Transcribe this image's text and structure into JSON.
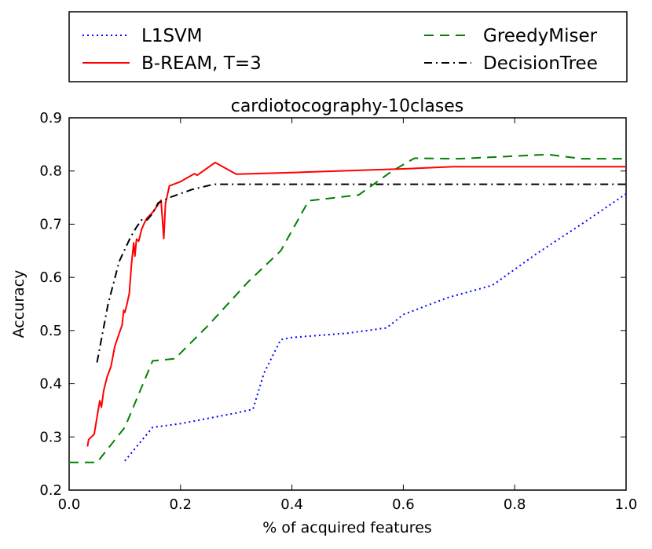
{
  "chart_data": {
    "type": "line",
    "title": "cardiotocography-10clases",
    "xlabel": "% of acquired features",
    "ylabel": "Accuracy",
    "xlim": [
      0.0,
      1.0
    ],
    "ylim": [
      0.2,
      0.9
    ],
    "xticks": [
      "0.0",
      "0.2",
      "0.4",
      "0.6",
      "0.8",
      "1.0"
    ],
    "yticks": [
      "0.2",
      "0.3",
      "0.4",
      "0.5",
      "0.6",
      "0.7",
      "0.8",
      "0.9"
    ],
    "legend_position": "top, above plot",
    "series": [
      {
        "name": "L1SVM",
        "color": "#0000ff",
        "style": "dotted",
        "x": [
          0.1,
          0.15,
          0.2,
          0.3,
          0.33,
          0.35,
          0.38,
          0.4,
          0.5,
          0.57,
          0.6,
          0.68,
          0.76,
          0.84,
          0.92,
          1.0
        ],
        "y": [
          0.255,
          0.318,
          0.325,
          0.345,
          0.352,
          0.42,
          0.483,
          0.487,
          0.495,
          0.505,
          0.53,
          0.562,
          0.585,
          0.645,
          0.7,
          0.757
        ]
      },
      {
        "name": "GreedyMiser",
        "color": "#008000",
        "style": "dashed",
        "x": [
          0.0,
          0.05,
          0.1,
          0.15,
          0.19,
          0.25,
          0.32,
          0.38,
          0.43,
          0.52,
          0.58,
          0.62,
          0.7,
          0.86,
          0.92,
          1.0
        ],
        "y": [
          0.252,
          0.252,
          0.318,
          0.443,
          0.447,
          0.51,
          0.59,
          0.65,
          0.744,
          0.755,
          0.8,
          0.824,
          0.823,
          0.831,
          0.823,
          0.823
        ]
      },
      {
        "name": "B-REAM, T=3",
        "color": "#ff0000",
        "style": "solid",
        "x": [
          0.033,
          0.035,
          0.045,
          0.055,
          0.058,
          0.062,
          0.068,
          0.075,
          0.082,
          0.09,
          0.095,
          0.098,
          0.1,
          0.104,
          0.108,
          0.112,
          0.116,
          0.118,
          0.121,
          0.125,
          0.13,
          0.135,
          0.14,
          0.15,
          0.165,
          0.17,
          0.173,
          0.175,
          0.18,
          0.2,
          0.225,
          0.23,
          0.262,
          0.3,
          0.4,
          0.6,
          0.69,
          0.8,
          1.0
        ],
        "y": [
          0.282,
          0.295,
          0.305,
          0.368,
          0.356,
          0.387,
          0.412,
          0.432,
          0.47,
          0.495,
          0.51,
          0.538,
          0.534,
          0.55,
          0.57,
          0.625,
          0.665,
          0.64,
          0.672,
          0.668,
          0.69,
          0.702,
          0.712,
          0.722,
          0.745,
          0.673,
          0.74,
          0.748,
          0.772,
          0.78,
          0.795,
          0.792,
          0.816,
          0.794,
          0.797,
          0.804,
          0.808,
          0.808,
          0.808
        ]
      },
      {
        "name": "DecisionTree",
        "color": "#000000",
        "style": "dashdot",
        "x": [
          0.05,
          0.07,
          0.09,
          0.11,
          0.12,
          0.13,
          0.14,
          0.15,
          0.16,
          0.18,
          0.22,
          0.26,
          0.3,
          0.4,
          0.6,
          0.8,
          1.0
        ],
        "y": [
          0.44,
          0.55,
          0.63,
          0.675,
          0.693,
          0.708,
          0.708,
          0.72,
          0.74,
          0.75,
          0.765,
          0.775,
          0.775,
          0.775,
          0.775,
          0.775,
          0.775
        ]
      }
    ]
  }
}
